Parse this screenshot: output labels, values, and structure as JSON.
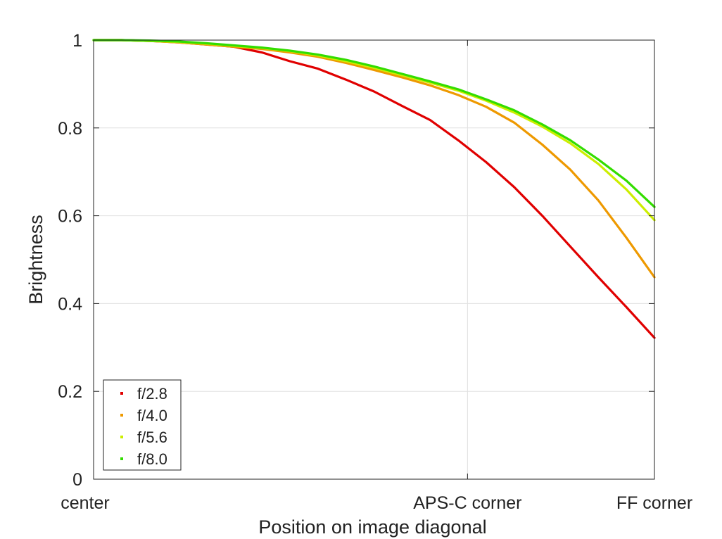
{
  "chart_data": {
    "type": "scatter",
    "title": "",
    "xlabel": "Position on image diagonal",
    "ylabel": "Brightness",
    "xlim": [
      0,
      1
    ],
    "ylim": [
      0,
      1
    ],
    "x_ticks": [
      {
        "value": 0,
        "label": "center"
      },
      {
        "value": 0.6667,
        "label": "APS-C corner"
      },
      {
        "value": 1,
        "label": "FF corner"
      }
    ],
    "y_ticks": [
      {
        "value": 0,
        "label": "0"
      },
      {
        "value": 0.2,
        "label": "0.2"
      },
      {
        "value": 0.4,
        "label": "0.4"
      },
      {
        "value": 0.6,
        "label": "0.6"
      },
      {
        "value": 0.8,
        "label": "0.8"
      },
      {
        "value": 1,
        "label": "1"
      }
    ],
    "grid": true,
    "legend_position": "bottom-left",
    "x": [
      0,
      0.05,
      0.1,
      0.15,
      0.2,
      0.25,
      0.3,
      0.35,
      0.4,
      0.45,
      0.5,
      0.55,
      0.6,
      0.65,
      0.7,
      0.75,
      0.8,
      0.85,
      0.9,
      0.95,
      1.0
    ],
    "series": [
      {
        "name": "f/2.8",
        "color": "#e00000",
        "values": [
          1.0,
          1.0,
          0.998,
          0.995,
          0.99,
          0.985,
          0.972,
          0.952,
          0.935,
          0.91,
          0.883,
          0.85,
          0.818,
          0.772,
          0.722,
          0.665,
          0.6,
          0.53,
          0.46,
          0.392,
          0.322
        ]
      },
      {
        "name": "f/4.0",
        "color": "#ee9900",
        "values": [
          1.0,
          1.0,
          0.998,
          0.995,
          0.99,
          0.985,
          0.98,
          0.972,
          0.962,
          0.948,
          0.932,
          0.915,
          0.897,
          0.875,
          0.848,
          0.812,
          0.762,
          0.705,
          0.635,
          0.55,
          0.46
        ]
      },
      {
        "name": "f/5.6",
        "color": "#ccee00",
        "values": [
          1.0,
          1.0,
          0.998,
          0.996,
          0.992,
          0.987,
          0.982,
          0.975,
          0.965,
          0.952,
          0.937,
          0.92,
          0.903,
          0.885,
          0.862,
          0.835,
          0.803,
          0.765,
          0.718,
          0.66,
          0.59
        ]
      },
      {
        "name": "f/8.0",
        "color": "#33dd00",
        "values": [
          1.0,
          1.0,
          0.999,
          0.997,
          0.993,
          0.988,
          0.983,
          0.976,
          0.967,
          0.955,
          0.94,
          0.923,
          0.906,
          0.888,
          0.865,
          0.84,
          0.808,
          0.772,
          0.728,
          0.68,
          0.62
        ]
      }
    ]
  }
}
